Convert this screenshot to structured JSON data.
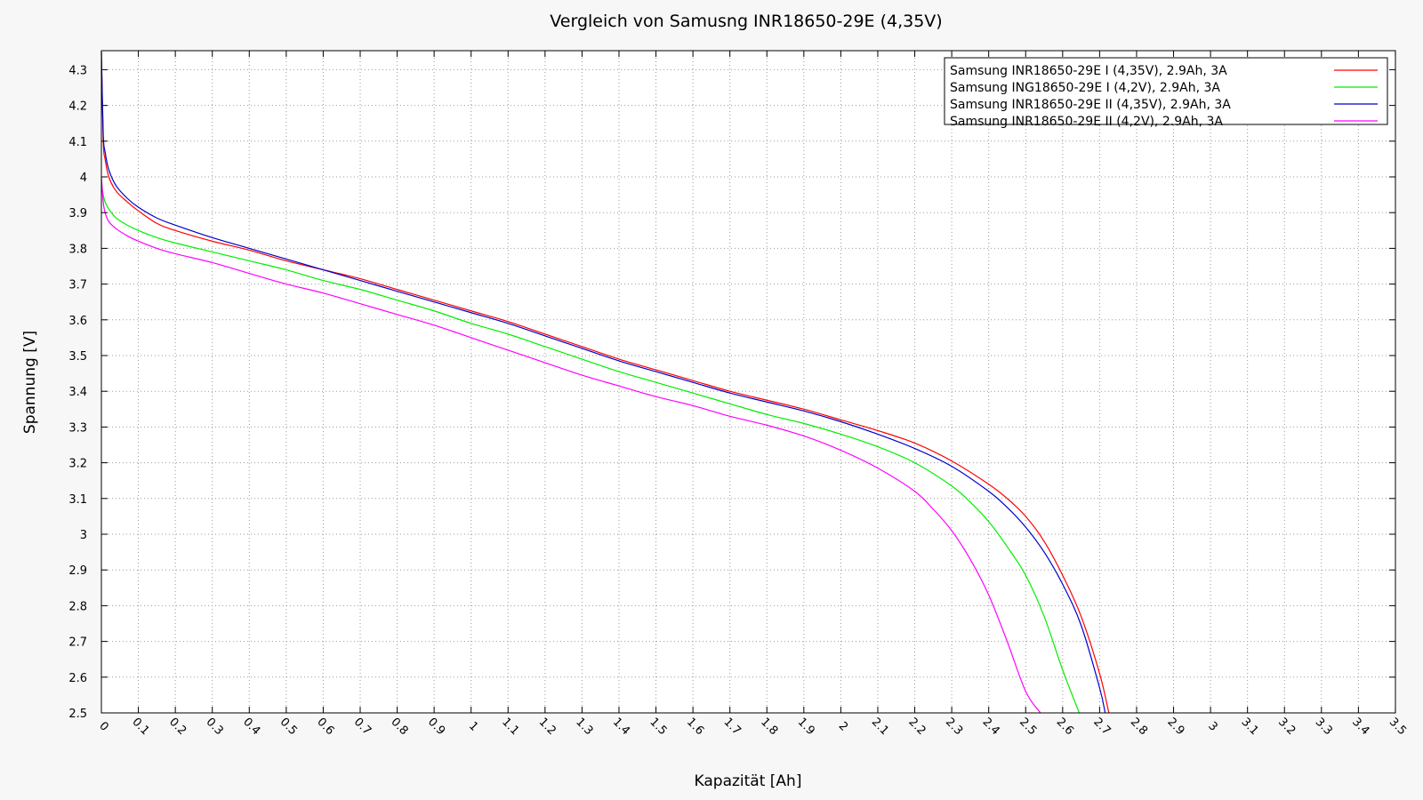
{
  "chart_data": {
    "type": "line",
    "title": "Vergleich von Samusng INR18650-29E (4,35V)",
    "xlabel": "Kapazität [Ah]",
    "ylabel": "Spannung [V]",
    "xlim": [
      0,
      3.5
    ],
    "ylim": [
      2.5,
      4.35
    ],
    "x_ticks": [
      "0",
      "0.1",
      "0.2",
      "0.3",
      "0.4",
      "0.5",
      "0.6",
      "0.7",
      "0.8",
      "0.9",
      "1",
      "1.1",
      "1.2",
      "1.3",
      "1.4",
      "1.5",
      "1.6",
      "1.7",
      "1.8",
      "1.9",
      "2",
      "2.1",
      "2.2",
      "2.3",
      "2.4",
      "2.5",
      "2.6",
      "2.7",
      "2.8",
      "2.9",
      "3",
      "3.1",
      "3.2",
      "3.3",
      "3.4",
      "3.5"
    ],
    "y_ticks": [
      "2.5",
      "2.6",
      "2.7",
      "2.8",
      "2.9",
      "3",
      "3.1",
      "3.2",
      "3.3",
      "3.4",
      "3.5",
      "3.6",
      "3.7",
      "3.8",
      "3.9",
      "4",
      "4.1",
      "4.2",
      "4.3"
    ],
    "grid": true,
    "legend_position": "top-right",
    "series": [
      {
        "name": "Samsung INR18650-29E I (4,35V), 2.9Ah, 3A",
        "color": "#ff0000",
        "x": [
          0,
          0.005,
          0.01,
          0.02,
          0.04,
          0.07,
          0.1,
          0.15,
          0.2,
          0.3,
          0.4,
          0.5,
          0.6,
          0.7,
          0.8,
          0.9,
          1.0,
          1.1,
          1.2,
          1.3,
          1.4,
          1.5,
          1.6,
          1.7,
          1.8,
          1.9,
          2.0,
          2.1,
          2.2,
          2.3,
          2.4,
          2.45,
          2.5,
          2.55,
          2.6,
          2.65,
          2.7,
          2.725
        ],
        "y": [
          4.35,
          4.1,
          4.05,
          4.0,
          3.96,
          3.93,
          3.905,
          3.87,
          3.85,
          3.82,
          3.795,
          3.765,
          3.74,
          3.715,
          3.685,
          3.655,
          3.625,
          3.595,
          3.56,
          3.525,
          3.49,
          3.46,
          3.43,
          3.4,
          3.375,
          3.35,
          3.32,
          3.29,
          3.255,
          3.205,
          3.14,
          3.1,
          3.05,
          2.98,
          2.885,
          2.77,
          2.61,
          2.5
        ]
      },
      {
        "name": "Samsung ING18650-29E I (4,2V), 2.9Ah, 3A",
        "color": "#00ee00",
        "x": [
          0,
          0.005,
          0.01,
          0.02,
          0.04,
          0.07,
          0.1,
          0.15,
          0.2,
          0.3,
          0.4,
          0.5,
          0.6,
          0.7,
          0.8,
          0.9,
          1.0,
          1.1,
          1.2,
          1.3,
          1.4,
          1.5,
          1.6,
          1.7,
          1.8,
          1.9,
          2.0,
          2.1,
          2.2,
          2.3,
          2.35,
          2.4,
          2.45,
          2.5,
          2.55,
          2.6,
          2.645
        ],
        "y": [
          3.98,
          3.95,
          3.93,
          3.91,
          3.885,
          3.865,
          3.85,
          3.83,
          3.815,
          3.79,
          3.765,
          3.74,
          3.71,
          3.685,
          3.655,
          3.625,
          3.59,
          3.56,
          3.525,
          3.49,
          3.455,
          3.425,
          3.395,
          3.365,
          3.335,
          3.31,
          3.28,
          3.245,
          3.2,
          3.135,
          3.09,
          3.035,
          2.965,
          2.885,
          2.77,
          2.62,
          2.5
        ]
      },
      {
        "name": "Samsung INR18650-29E II (4,35V), 2.9Ah, 3A",
        "color": "#0000cc",
        "x": [
          0,
          0.005,
          0.01,
          0.02,
          0.04,
          0.07,
          0.1,
          0.15,
          0.2,
          0.3,
          0.4,
          0.5,
          0.6,
          0.7,
          0.8,
          0.9,
          1.0,
          1.1,
          1.2,
          1.3,
          1.4,
          1.5,
          1.6,
          1.7,
          1.8,
          1.9,
          2.0,
          2.1,
          2.2,
          2.3,
          2.4,
          2.45,
          2.5,
          2.55,
          2.6,
          2.65,
          2.7,
          2.715
        ],
        "y": [
          4.35,
          4.12,
          4.07,
          4.02,
          3.975,
          3.94,
          3.915,
          3.885,
          3.865,
          3.83,
          3.8,
          3.77,
          3.74,
          3.71,
          3.68,
          3.65,
          3.62,
          3.59,
          3.555,
          3.52,
          3.485,
          3.455,
          3.425,
          3.395,
          3.37,
          3.345,
          3.315,
          3.28,
          3.24,
          3.19,
          3.12,
          3.075,
          3.02,
          2.95,
          2.86,
          2.745,
          2.57,
          2.5
        ]
      },
      {
        "name": "Samsung INR18650-29E II (4,2V), 2.9Ah, 3A",
        "color": "#ff00ff",
        "x": [
          0,
          0.005,
          0.01,
          0.02,
          0.04,
          0.07,
          0.1,
          0.15,
          0.2,
          0.3,
          0.4,
          0.5,
          0.6,
          0.7,
          0.8,
          0.9,
          1.0,
          1.1,
          1.2,
          1.3,
          1.4,
          1.5,
          1.6,
          1.7,
          1.8,
          1.9,
          2.0,
          2.1,
          2.2,
          2.25,
          2.3,
          2.35,
          2.4,
          2.45,
          2.5,
          2.54
        ],
        "y": [
          4.0,
          3.93,
          3.9,
          3.875,
          3.855,
          3.835,
          3.82,
          3.8,
          3.785,
          3.76,
          3.73,
          3.7,
          3.675,
          3.645,
          3.615,
          3.585,
          3.55,
          3.515,
          3.48,
          3.445,
          3.415,
          3.385,
          3.36,
          3.33,
          3.305,
          3.275,
          3.235,
          3.185,
          3.12,
          3.07,
          3.01,
          2.93,
          2.83,
          2.7,
          2.56,
          2.5
        ]
      }
    ]
  }
}
